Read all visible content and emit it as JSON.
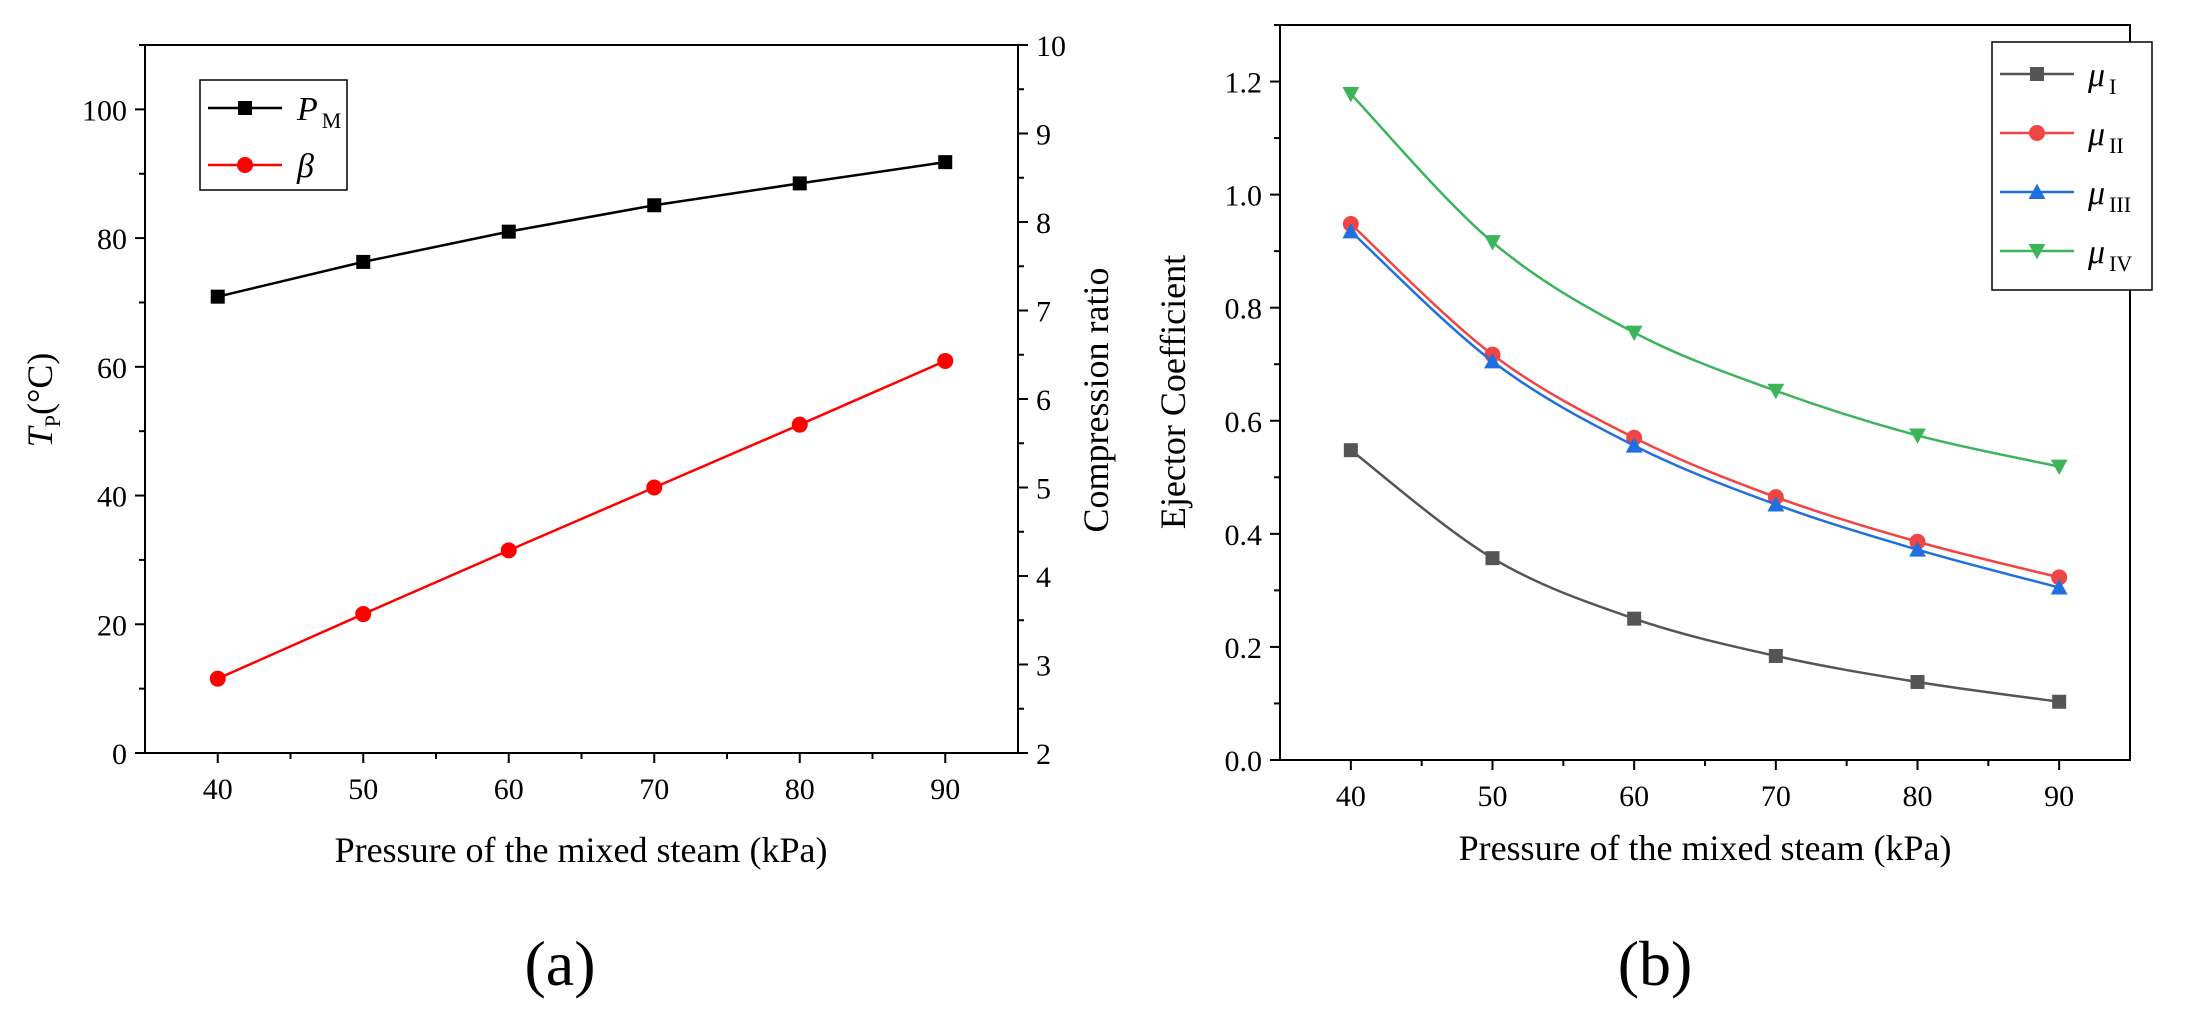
{
  "chart_data": [
    {
      "type": "line",
      "panel_label": "(a)",
      "xlabel": "Pressure of the mixed steam (kPa)",
      "ylabel": {
        "main": "T",
        "sub": "P",
        "rest": "(°C)"
      },
      "y2label": "Compression ratio",
      "x": [
        40,
        50,
        60,
        70,
        80,
        90
      ],
      "xlim": [
        35,
        95
      ],
      "ylim": [
        0,
        110
      ],
      "y2lim": [
        2,
        10
      ],
      "xticks": [
        40,
        50,
        60,
        70,
        80,
        90
      ],
      "yticks": [
        0,
        20,
        40,
        60,
        80,
        100
      ],
      "y2ticks": [
        2,
        3,
        4,
        5,
        6,
        7,
        8,
        9,
        10
      ],
      "legend_position": "top-left",
      "series": [
        {
          "name": "P",
          "sub": "M",
          "axis": "left",
          "color": "#000000",
          "marker": "square",
          "values": [
            70.9,
            76.3,
            81.0,
            85.1,
            88.5,
            91.8
          ]
        },
        {
          "name": "β",
          "sub": "",
          "axis": "right",
          "color": "#ff0000",
          "marker": "circle",
          "values": [
            2.84,
            3.57,
            4.29,
            5.0,
            5.71,
            6.43
          ]
        }
      ]
    },
    {
      "type": "line",
      "panel_label": "(b)",
      "xlabel": "Pressure of the mixed steam (kPa)",
      "ylabel": "Ejector Coefficient",
      "x": [
        40,
        50,
        60,
        70,
        80,
        90
      ],
      "xlim": [
        35,
        95
      ],
      "ylim": [
        0.0,
        1.3
      ],
      "xticks": [
        40,
        50,
        60,
        70,
        80,
        90
      ],
      "yticks": [
        0.0,
        0.2,
        0.4,
        0.6,
        0.8,
        1.0,
        1.2
      ],
      "ytick_labels": [
        "0.0",
        "0.2",
        "0.4",
        "0.6",
        "0.8",
        "1.0",
        "1.2"
      ],
      "legend_position": "top-right",
      "series": [
        {
          "name": "μ",
          "sub": "I",
          "color": "#555555",
          "marker": "square",
          "values": [
            0.548,
            0.357,
            0.25,
            0.184,
            0.138,
            0.103
          ]
        },
        {
          "name": "μ",
          "sub": "II",
          "color": "#f04545",
          "marker": "circle",
          "values": [
            0.948,
            0.717,
            0.57,
            0.465,
            0.386,
            0.323
          ]
        },
        {
          "name": "μ",
          "sub": "III",
          "color": "#1f6fe0",
          "marker": "triangle-up",
          "values": [
            0.935,
            0.705,
            0.556,
            0.452,
            0.372,
            0.305
          ]
        },
        {
          "name": "μ",
          "sub": "IV",
          "color": "#3cb45a",
          "marker": "triangle-down",
          "values": [
            1.178,
            0.916,
            0.756,
            0.653,
            0.574,
            0.519
          ]
        }
      ]
    }
  ]
}
